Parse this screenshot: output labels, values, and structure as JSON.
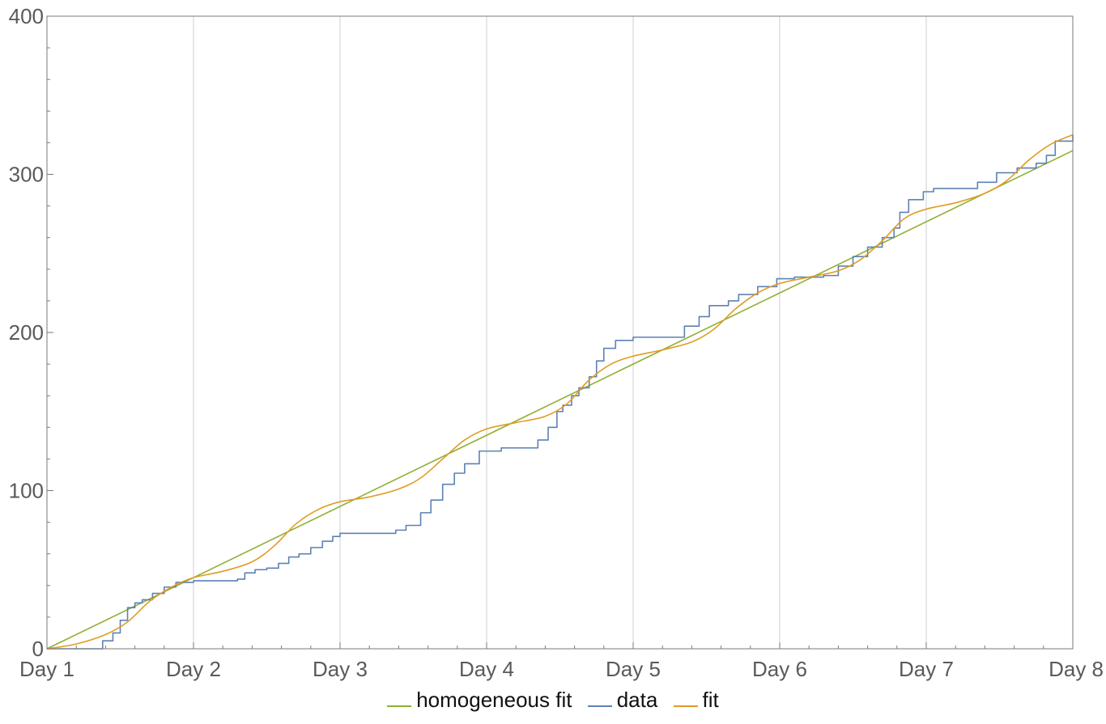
{
  "chart_data": {
    "type": "line",
    "title": "",
    "xlabel": "",
    "ylabel": "",
    "x_categories": [
      "Day 1",
      "Day 2",
      "Day 3",
      "Day 4",
      "Day 5",
      "Day 6",
      "Day 7",
      "Day 8"
    ],
    "xlim": [
      1,
      8
    ],
    "ylim": [
      0,
      400
    ],
    "y_ticks": [
      0,
      100,
      200,
      300,
      400
    ],
    "grid": "vertical lines at each day",
    "legend_position": "bottom-center",
    "series": [
      {
        "name": "homogeneous fit",
        "color": "#8fb032",
        "x": [
          1,
          8
        ],
        "y": [
          0,
          315
        ]
      },
      {
        "name": "data",
        "color": "#5e81b5",
        "step": true,
        "x": [
          1.0,
          1.33,
          1.38,
          1.45,
          1.5,
          1.55,
          1.6,
          1.65,
          1.72,
          1.8,
          1.88,
          2.0,
          2.1,
          2.3,
          2.35,
          2.42,
          2.5,
          2.58,
          2.65,
          2.72,
          2.8,
          2.88,
          2.95,
          3.0,
          3.3,
          3.38,
          3.45,
          3.55,
          3.62,
          3.7,
          3.78,
          3.85,
          3.95,
          4.1,
          4.25,
          4.35,
          4.42,
          4.48,
          4.52,
          4.58,
          4.63,
          4.7,
          4.75,
          4.8,
          4.88,
          5.0,
          5.2,
          5.35,
          5.45,
          5.52,
          5.65,
          5.72,
          5.85,
          5.98,
          6.1,
          6.3,
          6.4,
          6.5,
          6.6,
          6.7,
          6.78,
          6.82,
          6.88,
          6.98,
          7.05,
          7.25,
          7.35,
          7.48,
          7.62,
          7.75,
          7.82,
          7.88,
          8.0
        ],
        "y": [
          0,
          0,
          5,
          10,
          18,
          26,
          29,
          31,
          35,
          39,
          42,
          43,
          43,
          44,
          48,
          50,
          51,
          54,
          58,
          60,
          64,
          68,
          71,
          73,
          73,
          75,
          78,
          86,
          94,
          104,
          111,
          117,
          125,
          127,
          127,
          132,
          140,
          150,
          154,
          160,
          165,
          172,
          182,
          190,
          195,
          197,
          197,
          204,
          210,
          217,
          220,
          224,
          229,
          234,
          235,
          236,
          242,
          248,
          254,
          260,
          266,
          276,
          284,
          289,
          291,
          291,
          295,
          301,
          304,
          307,
          312,
          321,
          325
        ]
      },
      {
        "name": "fit",
        "color": "#e19c24",
        "x": [
          1.0,
          1.2,
          1.4,
          1.55,
          1.7,
          1.85,
          2.0,
          2.2,
          2.4,
          2.55,
          2.7,
          2.85,
          3.0,
          3.2,
          3.4,
          3.55,
          3.7,
          3.85,
          4.0,
          4.2,
          4.4,
          4.55,
          4.7,
          4.85,
          5.0,
          5.2,
          5.4,
          5.55,
          5.7,
          5.85,
          6.0,
          6.2,
          6.4,
          6.55,
          6.7,
          6.85,
          7.0,
          7.2,
          7.4,
          7.55,
          7.7,
          7.85,
          8.0
        ],
        "y": [
          0,
          3,
          9,
          17,
          30,
          39,
          45,
          49,
          55,
          65,
          79,
          88,
          93,
          96,
          101,
          108,
          120,
          132,
          139,
          143,
          147,
          155,
          170,
          180,
          185,
          189,
          194,
          202,
          215,
          225,
          231,
          235,
          239,
          246,
          258,
          272,
          278,
          282,
          288,
          296,
          309,
          319,
          325
        ]
      }
    ]
  },
  "legend": {
    "items": [
      {
        "label": "homogeneous fit",
        "color": "#8fb032"
      },
      {
        "label": "data",
        "color": "#5e81b5"
      },
      {
        "label": "fit",
        "color": "#e19c24"
      }
    ]
  }
}
